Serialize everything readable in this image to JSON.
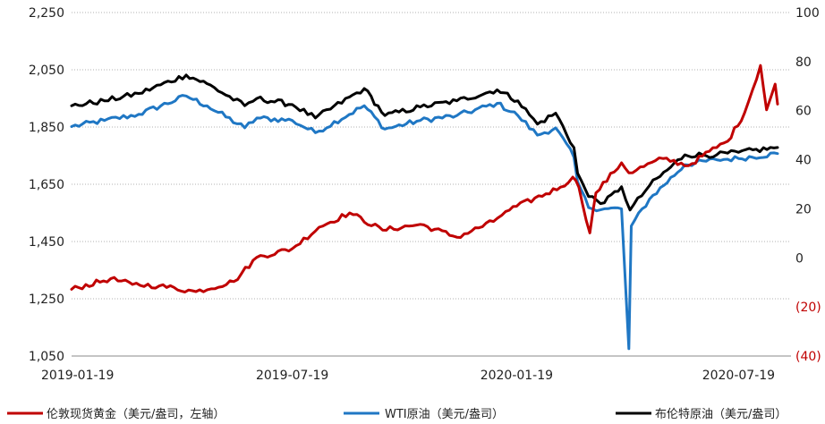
{
  "chart_data": {
    "type": "line",
    "title": "",
    "x": [
      "2019-01-19",
      "2019-07-19",
      "2020-01-19",
      "2020-07-19"
    ],
    "x_range": [
      "2019-01-19",
      "2020-08-31"
    ],
    "y_left": {
      "ticks": [
        "2,250",
        "2,050",
        "1,850",
        "1,650",
        "1,450",
        "1,250",
        "1,050"
      ],
      "range": [
        1050,
        2250
      ]
    },
    "y_right": {
      "ticks": [
        "100",
        "80",
        "60",
        "40",
        "20",
        "0",
        "(20)",
        "(40)"
      ],
      "negative_color": "#c00000",
      "range": [
        -40,
        100
      ]
    },
    "grid": "horizontal dotted",
    "legend_position": "bottom",
    "series": [
      {
        "name": "伦敦现货黄金（美元/盎司，左轴）",
        "axis": "left",
        "color": "#c00000",
        "points": [
          [
            "2019-01-19",
            1283
          ],
          [
            "2019-02-20",
            1320
          ],
          [
            "2019-03-10",
            1300
          ],
          [
            "2019-04-01",
            1295
          ],
          [
            "2019-05-01",
            1275
          ],
          [
            "2019-06-01",
            1310
          ],
          [
            "2019-06-20",
            1395
          ],
          [
            "2019-07-19",
            1425
          ],
          [
            "2019-08-10",
            1500
          ],
          [
            "2019-09-04",
            1550
          ],
          [
            "2019-10-01",
            1490
          ],
          [
            "2019-11-01",
            1510
          ],
          [
            "2019-12-01",
            1465
          ],
          [
            "2019-12-31",
            1520
          ],
          [
            "2020-01-10",
            1555
          ],
          [
            "2020-02-24",
            1640
          ],
          [
            "2020-03-05",
            1675
          ],
          [
            "2020-03-10",
            1640
          ],
          [
            "2020-03-19",
            1480
          ],
          [
            "2020-03-24",
            1620
          ],
          [
            "2020-04-14",
            1725
          ],
          [
            "2020-04-20",
            1690
          ],
          [
            "2020-05-18",
            1740
          ],
          [
            "2020-06-08",
            1715
          ],
          [
            "2020-06-25",
            1765
          ],
          [
            "2020-07-10",
            1800
          ],
          [
            "2020-07-24",
            1900
          ],
          [
            "2020-08-06",
            2065
          ],
          [
            "2020-08-11",
            1910
          ],
          [
            "2020-08-18",
            2000
          ],
          [
            "2020-08-20",
            1930
          ]
        ]
      },
      {
        "name": "WTI原油（美元/盎司）",
        "axis": "right",
        "color": "#1f77c4",
        "points": [
          [
            "2019-01-19",
            53.5
          ],
          [
            "2019-02-15",
            56
          ],
          [
            "2019-03-15",
            58.5
          ],
          [
            "2019-04-23",
            66
          ],
          [
            "2019-05-10",
            62
          ],
          [
            "2019-06-10",
            53
          ],
          [
            "2019-06-20",
            57
          ],
          [
            "2019-07-19",
            56
          ],
          [
            "2019-08-07",
            51
          ],
          [
            "2019-09-16",
            62
          ],
          [
            "2019-10-03",
            52.5
          ],
          [
            "2019-11-01",
            56
          ],
          [
            "2019-12-01",
            58
          ],
          [
            "2020-01-03",
            63
          ],
          [
            "2020-01-20",
            58
          ],
          [
            "2020-02-05",
            50
          ],
          [
            "2020-02-20",
            53
          ],
          [
            "2020-03-06",
            41
          ],
          [
            "2020-03-09",
            31
          ],
          [
            "2020-03-18",
            20.5
          ],
          [
            "2020-03-31",
            20
          ],
          [
            "2020-04-14",
            20
          ],
          [
            "2020-04-20",
            -37
          ],
          [
            "2020-04-22",
            13
          ],
          [
            "2020-05-07",
            24
          ],
          [
            "2020-06-05",
            38
          ],
          [
            "2020-07-01",
            40
          ],
          [
            "2020-07-19",
            40.5
          ],
          [
            "2020-08-20",
            42.5
          ]
        ]
      },
      {
        "name": "布伦特原油（美元/盎司）",
        "axis": "right",
        "color": "#000000",
        "points": [
          [
            "2019-01-19",
            62
          ],
          [
            "2019-02-15",
            64
          ],
          [
            "2019-03-15",
            67
          ],
          [
            "2019-04-23",
            74.5
          ],
          [
            "2019-05-10",
            71
          ],
          [
            "2019-06-10",
            62
          ],
          [
            "2019-06-20",
            65
          ],
          [
            "2019-07-19",
            62.5
          ],
          [
            "2019-08-07",
            57
          ],
          [
            "2019-09-16",
            69
          ],
          [
            "2019-10-03",
            58
          ],
          [
            "2019-11-01",
            61.5
          ],
          [
            "2019-12-01",
            64
          ],
          [
            "2020-01-03",
            68.5
          ],
          [
            "2020-01-20",
            64
          ],
          [
            "2020-02-05",
            54.5
          ],
          [
            "2020-02-20",
            59
          ],
          [
            "2020-03-06",
            45
          ],
          [
            "2020-03-09",
            34.5
          ],
          [
            "2020-03-18",
            25
          ],
          [
            "2020-03-31",
            22.5
          ],
          [
            "2020-04-14",
            29
          ],
          [
            "2020-04-21",
            19.5
          ],
          [
            "2020-05-07",
            29.5
          ],
          [
            "2020-06-05",
            42
          ],
          [
            "2020-07-01",
            42
          ],
          [
            "2020-07-19",
            43
          ],
          [
            "2020-08-20",
            45
          ]
        ]
      }
    ]
  }
}
